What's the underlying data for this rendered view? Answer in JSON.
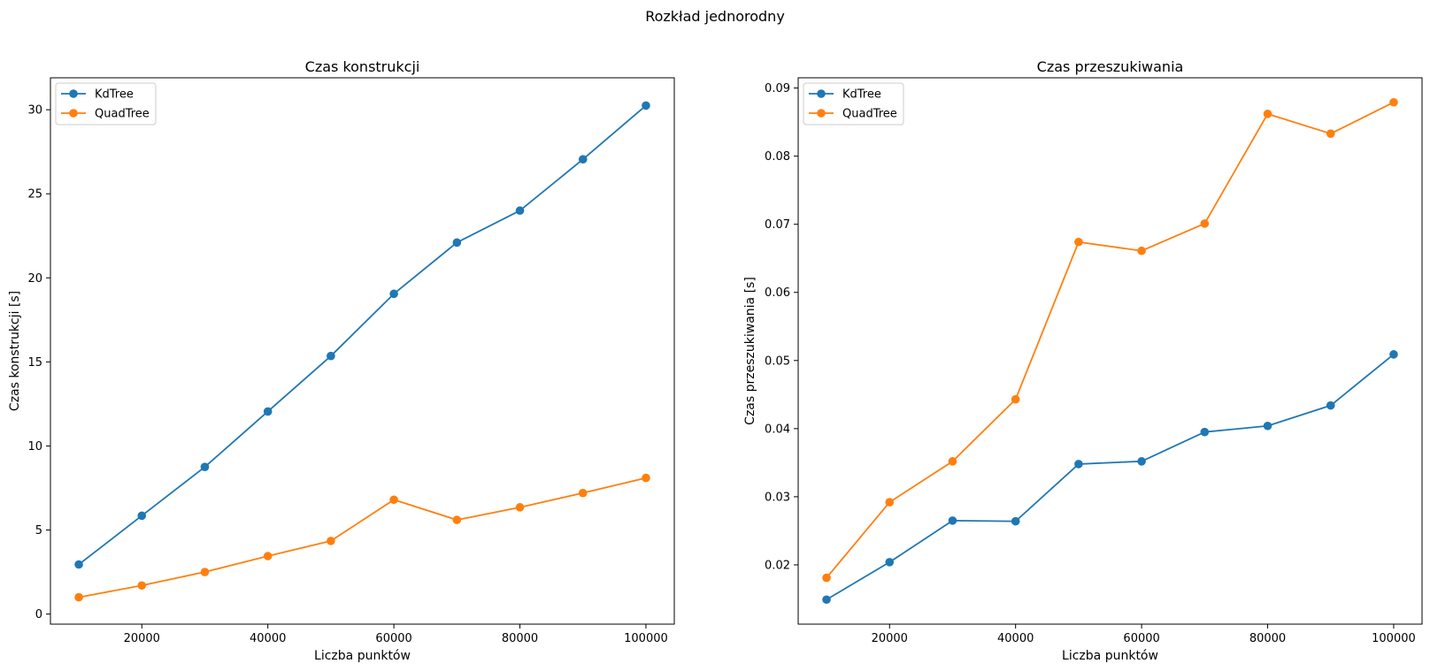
{
  "figure": {
    "suptitle": "Rozkład jednorodny"
  },
  "colors": {
    "kdtree": "#1f77b4",
    "quadtree": "#ff7f0e"
  },
  "chart_data": [
    {
      "type": "line",
      "title": "Czas konstrukcji",
      "xlabel": "Liczba punktów",
      "ylabel": "Czas konstrukcji [s]",
      "xlim": [
        5500,
        104500
      ],
      "ylim": [
        -0.6,
        31.9
      ],
      "xticks": [
        20000,
        40000,
        60000,
        80000,
        100000
      ],
      "xtick_labels": [
        "20000",
        "40000",
        "60000",
        "80000",
        "100000"
      ],
      "yticks": [
        0,
        5,
        10,
        15,
        20,
        25,
        30
      ],
      "ytick_labels": [
        "0",
        "5",
        "10",
        "15",
        "20",
        "25",
        "30"
      ],
      "legend": "top-left",
      "grid": false,
      "x": [
        10000,
        20000,
        30000,
        40000,
        50000,
        60000,
        70000,
        80000,
        90000,
        100000
      ],
      "series": [
        {
          "name": "KdTree",
          "color": "#1f77b4",
          "values": [
            2.95,
            5.85,
            8.75,
            12.05,
            15.35,
            19.05,
            22.1,
            24.0,
            27.05,
            30.25
          ]
        },
        {
          "name": "QuadTree",
          "color": "#ff7f0e",
          "values": [
            1.0,
            1.7,
            2.5,
            3.45,
            4.35,
            6.8,
            5.6,
            6.35,
            7.2,
            8.1
          ]
        }
      ]
    },
    {
      "type": "line",
      "title": "Czas przeszukiwania",
      "xlabel": "Liczba punktów",
      "ylabel": "Czas przeszukiwania [s]",
      "xlim": [
        5500,
        104500
      ],
      "ylim": [
        0.0113,
        0.0915
      ],
      "xticks": [
        20000,
        40000,
        60000,
        80000,
        100000
      ],
      "xtick_labels": [
        "20000",
        "40000",
        "60000",
        "80000",
        "100000"
      ],
      "yticks": [
        0.02,
        0.03,
        0.04,
        0.05,
        0.06,
        0.07,
        0.08,
        0.09
      ],
      "ytick_labels": [
        "0.02",
        "0.03",
        "0.04",
        "0.05",
        "0.06",
        "0.07",
        "0.08",
        "0.09"
      ],
      "legend": "top-left",
      "grid": false,
      "x": [
        10000,
        20000,
        30000,
        40000,
        50000,
        60000,
        70000,
        80000,
        90000,
        100000
      ],
      "series": [
        {
          "name": "KdTree",
          "color": "#1f77b4",
          "values": [
            0.0149,
            0.0204,
            0.0265,
            0.0264,
            0.0348,
            0.0352,
            0.0395,
            0.0404,
            0.0434,
            0.0509
          ]
        },
        {
          "name": "QuadTree",
          "color": "#ff7f0e",
          "values": [
            0.0181,
            0.0292,
            0.0352,
            0.0443,
            0.0674,
            0.0661,
            0.0701,
            0.0862,
            0.0833,
            0.0879
          ]
        }
      ]
    }
  ]
}
